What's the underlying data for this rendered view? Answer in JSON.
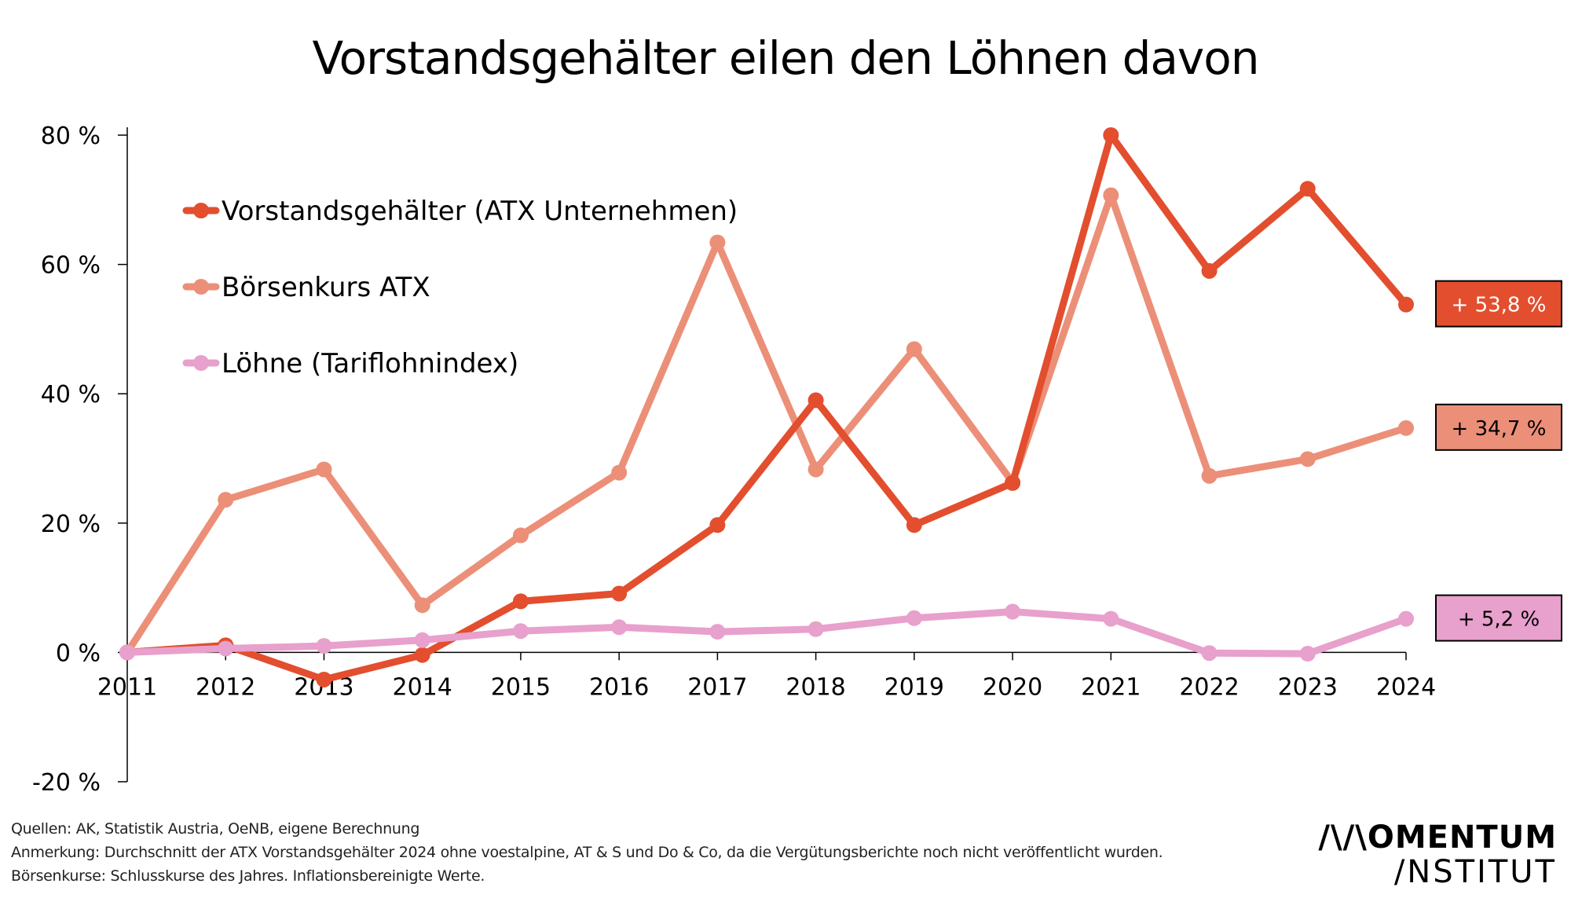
{
  "title": "Vorstandsgehälter eilen den Löhnen davon",
  "chart_data": {
    "type": "line",
    "title": "Vorstandsgehälter eilen den Löhnen davon",
    "xlabel": "",
    "ylabel": "",
    "x": [
      "2011",
      "2012",
      "2013",
      "2014",
      "2015",
      "2016",
      "2017",
      "2018",
      "2019",
      "2020",
      "2021",
      "2022",
      "2023",
      "2024"
    ],
    "ylim": [
      -20,
      80
    ],
    "yticks": [
      80,
      60,
      40,
      20,
      0,
      -20
    ],
    "ytick_labels": [
      "80 %",
      "60 %",
      "40 %",
      "20 %",
      "0 %",
      "-20 %"
    ],
    "grid": false,
    "legend_position": "top-left",
    "series": [
      {
        "name": "Vorstandsgehälter (ATX Unternehmen)",
        "color": "#e24e2e",
        "values": [
          0,
          1.1,
          -4.2,
          -0.4,
          7.9,
          9.1,
          19.7,
          39.0,
          19.7,
          26.2,
          80.0,
          59.0,
          71.7,
          53.8
        ],
        "end_label": "+ 53,8 %",
        "end_label_text_color": "#ffffff"
      },
      {
        "name": "Börsenkurs ATX",
        "color": "#ec8f78",
        "values": [
          0,
          23.6,
          28.3,
          7.3,
          18.1,
          27.8,
          63.4,
          28.3,
          46.9,
          26.3,
          70.7,
          27.3,
          29.9,
          34.7
        ],
        "end_label": "+ 34,7 %",
        "end_label_text_color": "#000000"
      },
      {
        "name": "Löhne (Tariflohnindex)",
        "color": "#e8a0cc",
        "values": [
          0,
          0.6,
          1.0,
          1.9,
          3.3,
          3.9,
          3.2,
          3.6,
          5.3,
          6.3,
          5.2,
          -0.1,
          -0.2,
          5.2
        ],
        "end_label": "+ 5,2 %",
        "end_label_text_color": "#000000"
      }
    ]
  },
  "notes": {
    "sources": "Quellen: AK, Statistik Austria, OeNB, eigene Berechnung",
    "remark": "Anmerkung: Durchschnitt der ATX Vorstandsgehälter 2024 ohne voestalpine, AT & S und Do & Co, da die Vergütungsberichte noch nicht veröffentlicht wurden.",
    "stock": "Börsenkurse: Schlusskurse des Jahres. Inflationsbereinigte Werte."
  },
  "logo": {
    "line1": "/\\/\\OMENTUM",
    "line2": "/NSTITUT"
  }
}
